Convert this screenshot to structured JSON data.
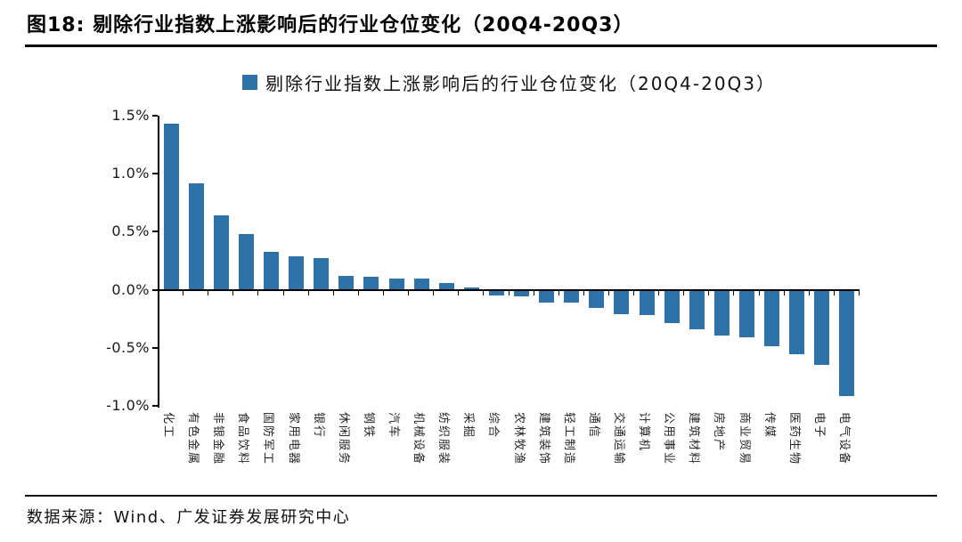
{
  "header": {
    "title": "图18:  剔除行业指数上涨影响后的行业仓位变化（20Q4-20Q3）"
  },
  "footer": {
    "source": "数据来源：Wind、广发证券发展研究中心"
  },
  "colors": {
    "bar": "#2D73AA",
    "axis": "#000000",
    "text": "#262626"
  },
  "chart_data": {
    "type": "bar",
    "legend": "剔除行业指数上涨影响后的行业仓位变化（20Q4-20Q3）",
    "legend_position": "top-center",
    "unit": "%",
    "grid": false,
    "ylim": [
      -1.0,
      1.5
    ],
    "ytick_labels": [
      "1.5%",
      "1.0%",
      "0.5%",
      "0.0%",
      "-0.5%",
      "-1.0%"
    ],
    "yticks": [
      1.5,
      1.0,
      0.5,
      0.0,
      -0.5,
      -1.0
    ],
    "xlabel": "",
    "ylabel": "",
    "categories": [
      "化工",
      "有色金属",
      "非银金融",
      "食品饮料",
      "国防军工",
      "家用电器",
      "银行",
      "休闲服务",
      "钢铁",
      "汽车",
      "机械设备",
      "纺织服装",
      "采掘",
      "综合",
      "农林牧渔",
      "建筑装饰",
      "轻工制造",
      "通信",
      "交通运输",
      "计算机",
      "公用事业",
      "建筑材料",
      "房地产",
      "商业贸易",
      "传媒",
      "医药生物",
      "电子",
      "电气设备"
    ],
    "values": [
      1.43,
      0.92,
      0.64,
      0.48,
      0.33,
      0.29,
      0.27,
      0.12,
      0.11,
      0.1,
      0.1,
      0.06,
      0.02,
      -0.04,
      -0.05,
      -0.1,
      -0.1,
      -0.15,
      -0.2,
      -0.21,
      -0.28,
      -0.33,
      -0.39,
      -0.4,
      -0.48,
      -0.55,
      -0.64,
      -0.91
    ]
  }
}
